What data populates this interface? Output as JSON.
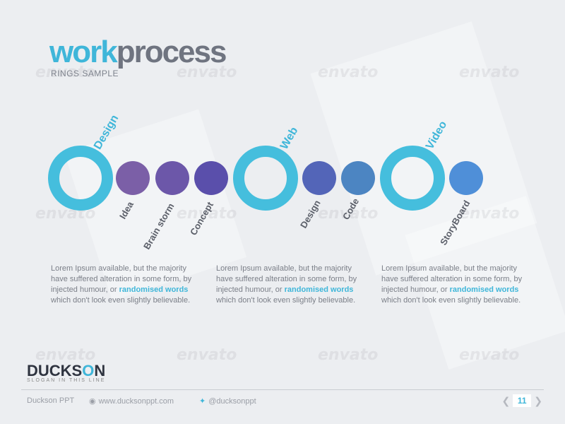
{
  "header": {
    "title_a": "work",
    "title_b": "process",
    "subtitle": "RINGS SAMPLE"
  },
  "groups": [
    {
      "ring_label": "Design",
      "steps": [
        "Idea",
        "Brain storm",
        "Concept"
      ]
    },
    {
      "ring_label": "Web",
      "steps": [
        "Design",
        "Code"
      ]
    },
    {
      "ring_label": "Video",
      "steps": [
        "StoryBoard"
      ]
    }
  ],
  "colors": {
    "accent": "#3fb6d9",
    "ring": "#45bedd",
    "dots": [
      "#7b5fa7",
      "#6c57a9",
      "#5a4fab",
      "#5365b8",
      "#4c85c2",
      "#4f8fd8"
    ]
  },
  "paragraphs": [
    {
      "before": "Lorem Ipsum available, but the majority have suffered alteration in some form, by injected humour, or ",
      "highlight": "randomised words",
      "after": " which don't look even slightly believable."
    },
    {
      "before": "Lorem Ipsum available, but the majority have suffered alteration in some form, by injected humour, or ",
      "highlight": "randomised words",
      "after": " which don't look even slightly believable."
    },
    {
      "before": "Lorem Ipsum available, but the majority have suffered alteration in some form, by injected humour, or ",
      "highlight": "randomised words",
      "after": " which don't look even slightly believable."
    }
  ],
  "brand": {
    "name_a": "DUCKS",
    "name_o": "O",
    "name_b": "N",
    "slogan": "SLOGAN IN THIS LINE"
  },
  "footer": {
    "company": "Duckson PPT",
    "website": "www.ducksonppt.com",
    "twitter": "@ducksonppt",
    "page": "11",
    "globe_icon": "globe-icon",
    "twitter_icon": "twitter-icon"
  },
  "watermark": "envato"
}
